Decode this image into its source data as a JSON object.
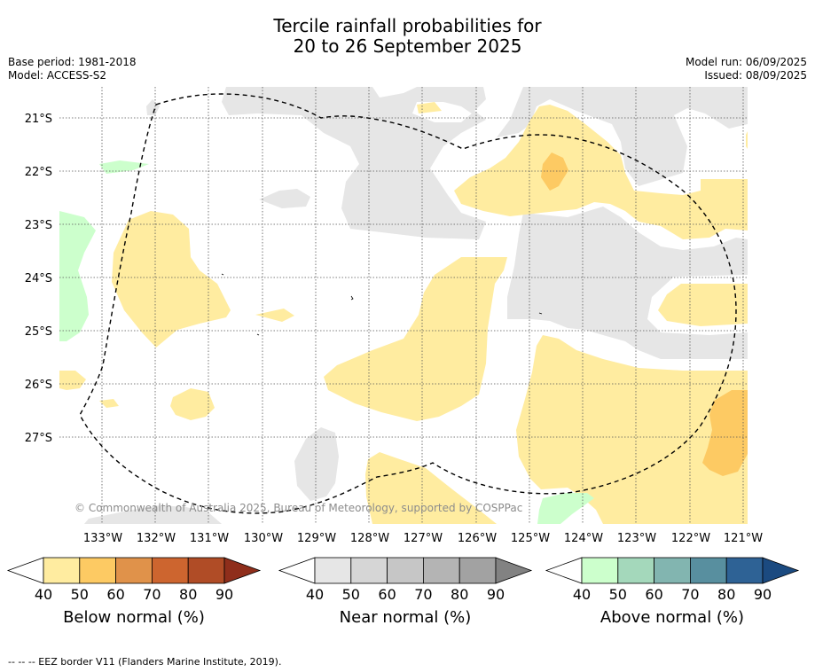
{
  "title_line1": "Tercile rainfall probabilities for",
  "title_line2": "20 to 26 September 2025",
  "meta_left": {
    "base_period": "Base period: 1981-2018",
    "model": "Model: ACCESS-S2"
  },
  "meta_right": {
    "model_run": "Model run: 06/09/2025",
    "issued": "Issued: 08/09/2025"
  },
  "map": {
    "lat_labels": [
      "21°S",
      "22°S",
      "23°S",
      "24°S",
      "25°S",
      "26°S",
      "27°S"
    ],
    "lon_labels": [
      "133°W",
      "132°W",
      "131°W",
      "130°W",
      "129°W",
      "128°W",
      "127°W",
      "126°W",
      "125°W",
      "124°W",
      "123°W",
      "122°W",
      "121°W"
    ],
    "copyright": "© Commonwealth of Australia 2025, Bureau of Meteorology, supported by COSPPac"
  },
  "colorbars": [
    {
      "label": "Below normal (%)",
      "ticks": [
        "40",
        "50",
        "60",
        "70",
        "80",
        "90"
      ],
      "colors": [
        "#ffffff",
        "#ffeca0",
        "#fdca63",
        "#e0924a",
        "#cd652f",
        "#b04c26",
        "#8f2e1b"
      ]
    },
    {
      "label": "Near normal (%)",
      "ticks": [
        "40",
        "50",
        "60",
        "70",
        "80",
        "90"
      ],
      "colors": [
        "#ffffff",
        "#e6e6e6",
        "#d6d6d6",
        "#c6c6c6",
        "#b4b4b4",
        "#a2a2a2",
        "#828282"
      ]
    },
    {
      "label": "Above normal (%)",
      "ticks": [
        "40",
        "50",
        "60",
        "70",
        "80",
        "90"
      ],
      "colors": [
        "#ffffff",
        "#ccffcc",
        "#a4d8bb",
        "#82b5b0",
        "#588f9f",
        "#2e6295",
        "#1b4a80"
      ]
    }
  ],
  "footer": "--  --  -- EEZ border V11 (Flanders Marine Institute, 2019)."
}
